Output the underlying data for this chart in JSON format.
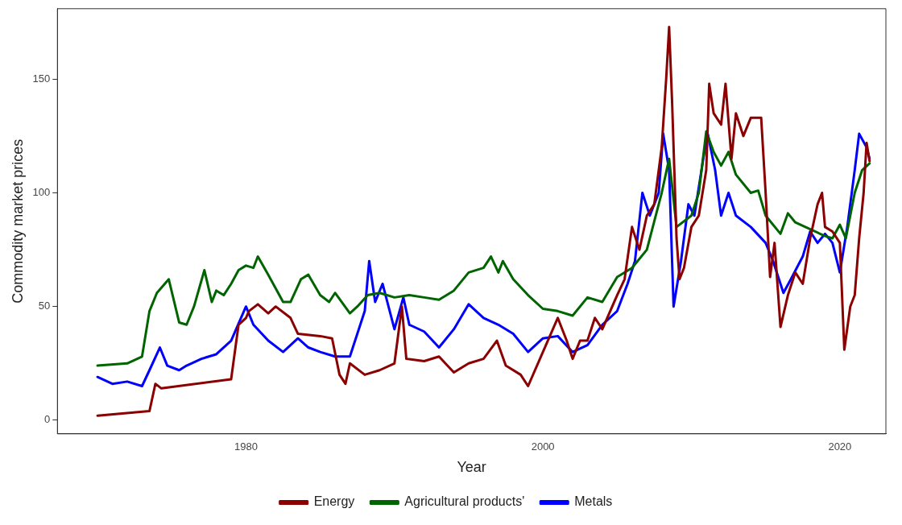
{
  "chart_data": {
    "type": "line",
    "xlabel": "Year",
    "ylabel": "Commodity market prices",
    "xlim": [
      1967.3,
      2023.1
    ],
    "ylim": [
      -6,
      181
    ],
    "xticks": [
      1980,
      2000,
      2020
    ],
    "yticks": [
      0,
      50,
      100,
      150
    ],
    "grid": false,
    "legend": "bottom",
    "marker": "none",
    "line_style": "solid",
    "series": [
      {
        "name": "Energy",
        "color": "#8b0000",
        "x": [
          1970,
          1973.5,
          1973.9,
          1974.3,
          1979,
          1979.5,
          1980,
          1980.2,
          1980.8,
          1981.5,
          1982,
          1983,
          1983.5,
          1985,
          1985.8,
          1986.3,
          1986.7,
          1987,
          1988,
          1989,
          1990,
          1990.5,
          1990.8,
          1992,
          1993,
          1994,
          1995,
          1996,
          1996.9,
          1997.5,
          1998.5,
          1999,
          2000,
          2001,
          2001.6,
          2002,
          2002.5,
          2003,
          2003.5,
          2004,
          2005,
          2005.5,
          2006,
          2006.5,
          2007,
          2007.5,
          2008,
          2008.3,
          2008.5,
          2008.7,
          2009,
          2009.2,
          2009.5,
          2010,
          2010.5,
          2011,
          2011.2,
          2011.5,
          2012,
          2012.3,
          2012.7,
          2013,
          2013.5,
          2014,
          2014.7,
          2015,
          2015.3,
          2015.6,
          2016,
          2016.5,
          2017,
          2017.5,
          2018,
          2018.5,
          2018.8,
          2019,
          2019.5,
          2020,
          2020.3,
          2020.7,
          2021,
          2021.3,
          2021.6,
          2021.8,
          2022
        ],
        "values": [
          2,
          4,
          16,
          14,
          18,
          42,
          45,
          48,
          51,
          47,
          50,
          45,
          38,
          37,
          36,
          20,
          16,
          25,
          20,
          22,
          25,
          50,
          27,
          26,
          28,
          21,
          25,
          27,
          35,
          24,
          20,
          15,
          30,
          45,
          35,
          27,
          35,
          35,
          45,
          40,
          55,
          62,
          85,
          75,
          90,
          95,
          120,
          150,
          173,
          140,
          80,
          62,
          67,
          85,
          90,
          110,
          148,
          135,
          130,
          148,
          115,
          135,
          125,
          133,
          133,
          100,
          63,
          78,
          41,
          55,
          65,
          60,
          80,
          95,
          100,
          85,
          83,
          78,
          31,
          50,
          55,
          80,
          100,
          122,
          114
        ]
      },
      {
        "name": "Agricultural products'",
        "color": "#006400",
        "x": [
          1970,
          1972,
          1973,
          1973.5,
          1974,
          1974.8,
          1975.5,
          1976,
          1976.5,
          1977.2,
          1977.7,
          1978,
          1978.5,
          1979,
          1979.5,
          1980,
          1980.5,
          1980.8,
          1981.5,
          1982.5,
          1983,
          1983.7,
          1984.2,
          1985,
          1985.6,
          1986,
          1987,
          1987.5,
          1988.2,
          1989,
          1990,
          1991,
          1992,
          1993,
          1994,
          1995,
          1996,
          1996.5,
          1997,
          1997.3,
          1998,
          1999,
          2000,
          2001,
          2002,
          2003,
          2004,
          2005,
          2006,
          2007,
          2008,
          2008.5,
          2009,
          2010,
          2010.5,
          2011,
          2011.5,
          2012,
          2012.5,
          2013,
          2014,
          2014.5,
          2015,
          2016,
          2016.5,
          2017,
          2018,
          2019,
          2019.5,
          2020,
          2020.4,
          2021,
          2021.5,
          2022
        ],
        "values": [
          24,
          25,
          28,
          48,
          56,
          62,
          43,
          42,
          50,
          66,
          52,
          57,
          55,
          60,
          66,
          68,
          67,
          72,
          64,
          52,
          52,
          62,
          64,
          55,
          52,
          56,
          47,
          50,
          55,
          56,
          54,
          55,
          54,
          53,
          57,
          65,
          67,
          72,
          65,
          70,
          62,
          55,
          49,
          48,
          46,
          54,
          52,
          63,
          67,
          75,
          100,
          115,
          85,
          90,
          100,
          127,
          118,
          112,
          118,
          108,
          100,
          101,
          90,
          82,
          91,
          87,
          84,
          81,
          80,
          86,
          80,
          100,
          110,
          113
        ]
      },
      {
        "name": "Metals",
        "color": "#0000ff",
        "x": [
          1970,
          1971,
          1972,
          1973,
          1973.5,
          1974.2,
          1974.7,
          1975.5,
          1976,
          1977,
          1978,
          1979,
          1980,
          1980.5,
          1981.5,
          1982.5,
          1983.5,
          1984.2,
          1985,
          1986,
          1987,
          1988,
          1988.3,
          1988.7,
          1989.2,
          1990,
          1990.6,
          1991,
          1992,
          1993,
          1994,
          1995,
          1996,
          1997,
          1998,
          1999,
          2000,
          2001,
          2002,
          2003,
          2004,
          2005,
          2005.7,
          2006.2,
          2006.7,
          2007.2,
          2007.8,
          2008.1,
          2008.5,
          2008.8,
          2009.3,
          2009.8,
          2010.2,
          2010.8,
          2011.1,
          2011.6,
          2012,
          2012.5,
          2013,
          2014,
          2015,
          2015.5,
          2016.2,
          2016.7,
          2017.5,
          2018,
          2018.5,
          2019,
          2019.5,
          2020,
          2020.5,
          2021,
          2021.3,
          2021.8,
          2022
        ],
        "values": [
          19,
          16,
          17,
          15,
          22,
          32,
          24,
          22,
          24,
          27,
          29,
          35,
          50,
          42,
          35,
          30,
          36,
          32,
          30,
          28,
          28,
          48,
          70,
          52,
          60,
          40,
          54,
          42,
          39,
          32,
          40,
          51,
          45,
          42,
          38,
          30,
          36,
          37,
          30,
          33,
          42,
          48,
          60,
          70,
          100,
          90,
          100,
          126,
          110,
          50,
          70,
          95,
          90,
          115,
          126,
          110,
          90,
          100,
          90,
          85,
          78,
          70,
          56,
          62,
          72,
          83,
          78,
          82,
          78,
          65,
          85,
          110,
          126,
          120,
          115
        ]
      }
    ]
  }
}
